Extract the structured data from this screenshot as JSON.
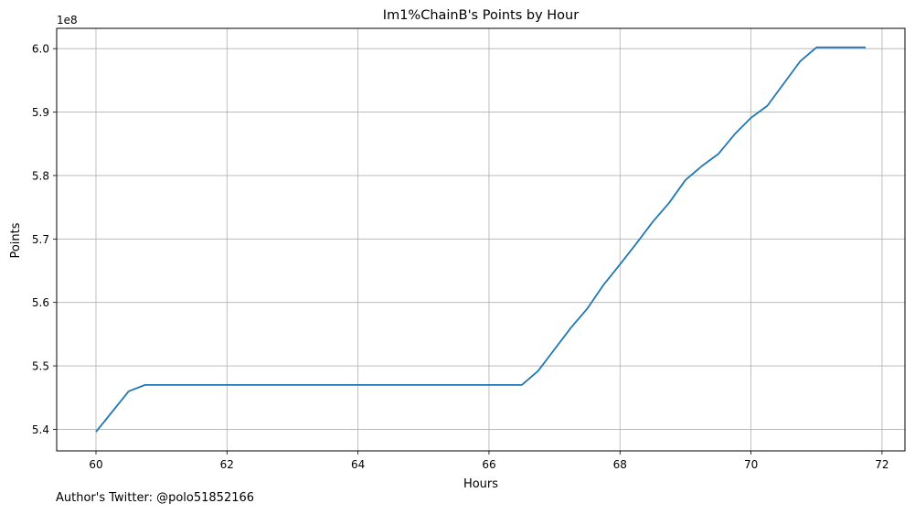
{
  "chart_data": {
    "type": "line",
    "title": "Im1%ChainB's Points by Hour",
    "xlabel": "Hours",
    "ylabel": "Points",
    "y_offset_label": "1e8",
    "xlim": [
      59.4,
      72.35
    ],
    "ylim": [
      536.6,
      603.2
    ],
    "x_ticks": [
      60,
      62,
      64,
      66,
      68,
      70,
      72
    ],
    "x_tick_labels": [
      "60",
      "62",
      "64",
      "66",
      "68",
      "70",
      "72"
    ],
    "y_ticks": [
      540,
      550,
      560,
      570,
      580,
      590,
      600
    ],
    "y_tick_labels": [
      "5.4",
      "5.5",
      "5.6",
      "5.7",
      "5.8",
      "5.9",
      "6.0"
    ],
    "grid": true,
    "series": [
      {
        "color": "#1f77b4",
        "x": [
          60.0,
          60.25,
          60.5,
          60.75,
          61.0,
          62.0,
          63.0,
          64.0,
          65.0,
          66.0,
          66.25,
          66.5,
          66.75,
          67.0,
          67.25,
          67.5,
          67.75,
          68.0,
          68.25,
          68.5,
          68.75,
          69.0,
          69.25,
          69.5,
          69.75,
          70.0,
          70.25,
          70.5,
          70.75,
          71.0,
          71.25,
          71.5,
          71.75
        ],
        "y": [
          539.6,
          542.8,
          546.0,
          547.0,
          547.0,
          547.0,
          547.0,
          547.0,
          547.0,
          547.0,
          547.0,
          547.0,
          549.2,
          552.6,
          556.0,
          559.0,
          562.8,
          566.0,
          569.3,
          572.7,
          575.7,
          579.3,
          581.5,
          583.4,
          586.5,
          589.1,
          591.0,
          594.5,
          598.0,
          600.2,
          600.2,
          600.2,
          600.2
        ]
      }
    ]
  },
  "footer": {
    "note": "Author's Twitter: @polo51852166"
  }
}
